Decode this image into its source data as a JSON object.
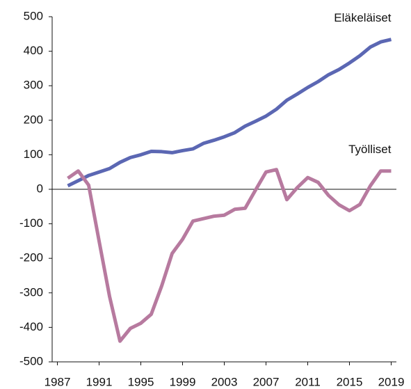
{
  "chart_data": {
    "type": "line",
    "x": [
      1988,
      1989,
      1990,
      1991,
      1992,
      1993,
      1994,
      1995,
      1996,
      1997,
      1998,
      1999,
      2000,
      2001,
      2002,
      2003,
      2004,
      2005,
      2006,
      2007,
      2008,
      2009,
      2010,
      2011,
      2012,
      2013,
      2014,
      2015,
      2016,
      2017,
      2018,
      2019
    ],
    "series": [
      {
        "name": "Eläkeläiset",
        "color": "#5b67b3",
        "values": [
          10,
          25,
          40,
          50,
          60,
          78,
          92,
          100,
          110,
          109,
          106,
          112,
          117,
          133,
          142,
          152,
          164,
          183,
          197,
          212,
          232,
          258,
          276,
          295,
          312,
          332,
          347,
          366,
          387,
          412,
          427,
          434
        ]
      },
      {
        "name": "Työlliset",
        "color": "#b77a9f",
        "values": [
          32,
          53,
          12,
          -150,
          -310,
          -440,
          -403,
          -388,
          -362,
          -280,
          -186,
          -145,
          -92,
          -85,
          -78,
          -75,
          -58,
          -55,
          -2,
          50,
          57,
          -30,
          5,
          34,
          20,
          -18,
          -45,
          -62,
          -44,
          10,
          53,
          53
        ]
      }
    ],
    "xlim": [
      1986.5,
      2019.5
    ],
    "xticks": [
      1987,
      1991,
      1995,
      1999,
      2003,
      2007,
      2011,
      2015,
      2019
    ],
    "ylim": [
      -500,
      500
    ],
    "yticks": [
      -500,
      -400,
      -300,
      -200,
      -100,
      0,
      100,
      200,
      300,
      400,
      500
    ]
  }
}
